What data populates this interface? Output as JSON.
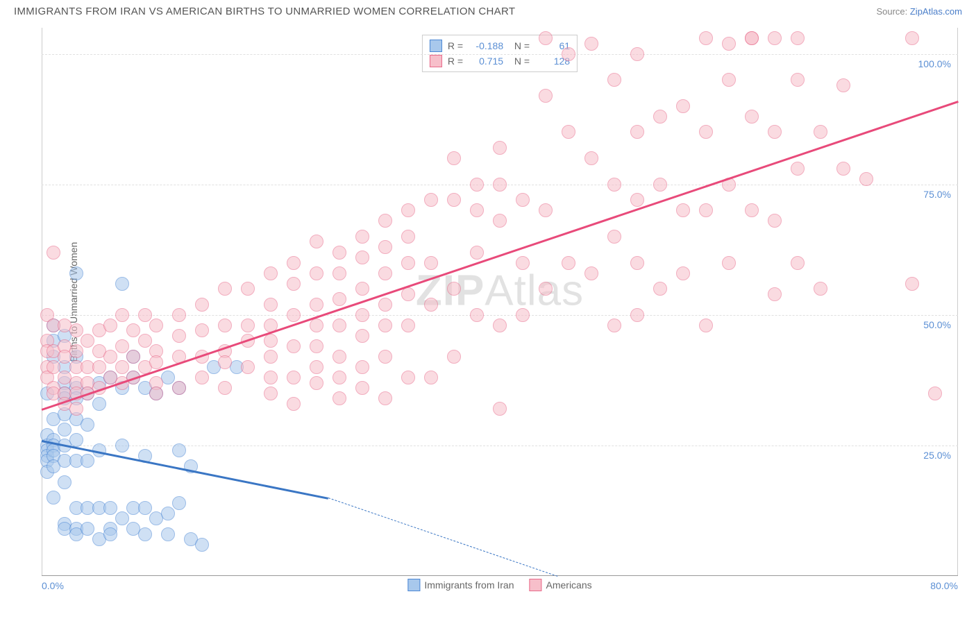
{
  "title": "IMMIGRANTS FROM IRAN VS AMERICAN BIRTHS TO UNMARRIED WOMEN CORRELATION CHART",
  "source_prefix": "Source: ",
  "source_link": "ZipAtlas.com",
  "ylabel": "Births to Unmarried Women",
  "watermark_bold": "ZIP",
  "watermark_rest": "Atlas",
  "chart": {
    "type": "scatter",
    "xlim": [
      0,
      80
    ],
    "ylim": [
      0,
      105
    ],
    "xtick_labels": [
      "0.0%",
      "80.0%"
    ],
    "xtick_positions": [
      0,
      80
    ],
    "ytick_labels": [
      "25.0%",
      "50.0%",
      "75.0%",
      "100.0%"
    ],
    "ytick_positions": [
      25,
      50,
      75,
      100
    ],
    "grid_color": "#e0e0e0",
    "background_color": "#ffffff",
    "marker_radius": 10,
    "marker_border_width": 1.5,
    "series": [
      {
        "name": "Immigrants from Iran",
        "fill": "#a8c8ec",
        "fill_opacity": 0.55,
        "stroke": "#4a86d4",
        "line_color": "#3a76c4",
        "r_value": "-0.188",
        "n_value": "61",
        "trend": {
          "x1": 0,
          "y1": 26,
          "x2_solid": 25,
          "y2_solid": 15,
          "x2": 45,
          "y2": 0
        },
        "points": [
          [
            0.5,
            35
          ],
          [
            0.5,
            27
          ],
          [
            0.5,
            25
          ],
          [
            0.5,
            24
          ],
          [
            0.5,
            23
          ],
          [
            0.5,
            22
          ],
          [
            0.5,
            20
          ],
          [
            1,
            48
          ],
          [
            1,
            45
          ],
          [
            1,
            42
          ],
          [
            1,
            30
          ],
          [
            1,
            26
          ],
          [
            1,
            25
          ],
          [
            1,
            24
          ],
          [
            1,
            23
          ],
          [
            1,
            21
          ],
          [
            1,
            15
          ],
          [
            2,
            46
          ],
          [
            2,
            40
          ],
          [
            2,
            37
          ],
          [
            2,
            35
          ],
          [
            2,
            34
          ],
          [
            2,
            31
          ],
          [
            2,
            28
          ],
          [
            2,
            25
          ],
          [
            2,
            22
          ],
          [
            2,
            18
          ],
          [
            2,
            10
          ],
          [
            2,
            9
          ],
          [
            3,
            58
          ],
          [
            3,
            42
          ],
          [
            3,
            36
          ],
          [
            3,
            34
          ],
          [
            3,
            30
          ],
          [
            3,
            26
          ],
          [
            3,
            22
          ],
          [
            3,
            13
          ],
          [
            3,
            9
          ],
          [
            3,
            8
          ],
          [
            4,
            35
          ],
          [
            4,
            29
          ],
          [
            4,
            22
          ],
          [
            4,
            13
          ],
          [
            4,
            9
          ],
          [
            5,
            37
          ],
          [
            5,
            33
          ],
          [
            5,
            24
          ],
          [
            5,
            13
          ],
          [
            5,
            7
          ],
          [
            6,
            38
          ],
          [
            6,
            13
          ],
          [
            6,
            9
          ],
          [
            6,
            8
          ],
          [
            7,
            56
          ],
          [
            7,
            36
          ],
          [
            7,
            25
          ],
          [
            7,
            11
          ],
          [
            8,
            42
          ],
          [
            8,
            38
          ],
          [
            8,
            13
          ],
          [
            8,
            9
          ],
          [
            9,
            36
          ],
          [
            9,
            23
          ],
          [
            9,
            13
          ],
          [
            9,
            8
          ],
          [
            10,
            35
          ],
          [
            10,
            11
          ],
          [
            11,
            38
          ],
          [
            11,
            12
          ],
          [
            11,
            8
          ],
          [
            12,
            36
          ],
          [
            12,
            24
          ],
          [
            12,
            14
          ],
          [
            13,
            21
          ],
          [
            13,
            7
          ],
          [
            15,
            40
          ],
          [
            14,
            6
          ],
          [
            17,
            40
          ]
        ]
      },
      {
        "name": "Americans",
        "fill": "#f7bfca",
        "fill_opacity": 0.55,
        "stroke": "#e86a8a",
        "line_color": "#e84a7a",
        "r_value": "0.715",
        "n_value": "128",
        "trend": {
          "x1": 0,
          "y1": 32,
          "x2_solid": 80,
          "y2_solid": 91,
          "x2": 80,
          "y2": 91
        },
        "points": [
          [
            0.5,
            50
          ],
          [
            0.5,
            45
          ],
          [
            0.5,
            43
          ],
          [
            0.5,
            40
          ],
          [
            0.5,
            38
          ],
          [
            1,
            62
          ],
          [
            1,
            48
          ],
          [
            1,
            43
          ],
          [
            1,
            40
          ],
          [
            1,
            36
          ],
          [
            1,
            35
          ],
          [
            2,
            48
          ],
          [
            2,
            44
          ],
          [
            2,
            42
          ],
          [
            2,
            38
          ],
          [
            2,
            35
          ],
          [
            2,
            33
          ],
          [
            3,
            47
          ],
          [
            3,
            43
          ],
          [
            3,
            40
          ],
          [
            3,
            37
          ],
          [
            3,
            35
          ],
          [
            3,
            32
          ],
          [
            4,
            45
          ],
          [
            4,
            40
          ],
          [
            4,
            37
          ],
          [
            4,
            35
          ],
          [
            5,
            47
          ],
          [
            5,
            43
          ],
          [
            5,
            40
          ],
          [
            5,
            36
          ],
          [
            6,
            48
          ],
          [
            6,
            42
          ],
          [
            6,
            38
          ],
          [
            7,
            50
          ],
          [
            7,
            44
          ],
          [
            7,
            40
          ],
          [
            7,
            37
          ],
          [
            8,
            47
          ],
          [
            8,
            42
          ],
          [
            8,
            38
          ],
          [
            9,
            50
          ],
          [
            9,
            45
          ],
          [
            9,
            40
          ],
          [
            10,
            48
          ],
          [
            10,
            43
          ],
          [
            10,
            41
          ],
          [
            10,
            37
          ],
          [
            10,
            35
          ],
          [
            12,
            50
          ],
          [
            12,
            46
          ],
          [
            12,
            42
          ],
          [
            12,
            36
          ],
          [
            14,
            52
          ],
          [
            14,
            47
          ],
          [
            14,
            42
          ],
          [
            14,
            38
          ],
          [
            16,
            55
          ],
          [
            16,
            48
          ],
          [
            16,
            43
          ],
          [
            16,
            41
          ],
          [
            16,
            36
          ],
          [
            18,
            55
          ],
          [
            18,
            48
          ],
          [
            18,
            45
          ],
          [
            18,
            40
          ],
          [
            20,
            58
          ],
          [
            20,
            52
          ],
          [
            20,
            48
          ],
          [
            20,
            45
          ],
          [
            20,
            42
          ],
          [
            20,
            38
          ],
          [
            20,
            35
          ],
          [
            22,
            60
          ],
          [
            22,
            56
          ],
          [
            22,
            50
          ],
          [
            22,
            44
          ],
          [
            22,
            38
          ],
          [
            22,
            33
          ],
          [
            24,
            64
          ],
          [
            24,
            58
          ],
          [
            24,
            52
          ],
          [
            24,
            48
          ],
          [
            24,
            44
          ],
          [
            24,
            40
          ],
          [
            24,
            37
          ],
          [
            26,
            62
          ],
          [
            26,
            58
          ],
          [
            26,
            53
          ],
          [
            26,
            48
          ],
          [
            26,
            42
          ],
          [
            26,
            38
          ],
          [
            26,
            34
          ],
          [
            28,
            65
          ],
          [
            28,
            61
          ],
          [
            28,
            55
          ],
          [
            28,
            50
          ],
          [
            28,
            46
          ],
          [
            28,
            40
          ],
          [
            28,
            36
          ],
          [
            30,
            68
          ],
          [
            30,
            63
          ],
          [
            30,
            58
          ],
          [
            30,
            52
          ],
          [
            30,
            48
          ],
          [
            30,
            42
          ],
          [
            30,
            34
          ],
          [
            32,
            70
          ],
          [
            32,
            65
          ],
          [
            32,
            60
          ],
          [
            32,
            54
          ],
          [
            32,
            48
          ],
          [
            32,
            38
          ],
          [
            34,
            72
          ],
          [
            34,
            60
          ],
          [
            34,
            52
          ],
          [
            34,
            38
          ],
          [
            36,
            80
          ],
          [
            36,
            72
          ],
          [
            36,
            55
          ],
          [
            36,
            42
          ],
          [
            38,
            75
          ],
          [
            38,
            70
          ],
          [
            38,
            62
          ],
          [
            38,
            50
          ],
          [
            40,
            82
          ],
          [
            40,
            75
          ],
          [
            40,
            68
          ],
          [
            40,
            48
          ],
          [
            40,
            32
          ],
          [
            42,
            72
          ],
          [
            42,
            60
          ],
          [
            42,
            50
          ],
          [
            44,
            103
          ],
          [
            44,
            92
          ],
          [
            44,
            70
          ],
          [
            44,
            55
          ],
          [
            46,
            100
          ],
          [
            46,
            85
          ],
          [
            46,
            60
          ],
          [
            48,
            102
          ],
          [
            48,
            80
          ],
          [
            48,
            58
          ],
          [
            50,
            95
          ],
          [
            50,
            75
          ],
          [
            50,
            65
          ],
          [
            50,
            48
          ],
          [
            52,
            100
          ],
          [
            52,
            85
          ],
          [
            52,
            72
          ],
          [
            52,
            60
          ],
          [
            52,
            50
          ],
          [
            54,
            88
          ],
          [
            54,
            75
          ],
          [
            54,
            55
          ],
          [
            56,
            90
          ],
          [
            56,
            70
          ],
          [
            56,
            58
          ],
          [
            58,
            103
          ],
          [
            58,
            85
          ],
          [
            58,
            70
          ],
          [
            58,
            48
          ],
          [
            60,
            102
          ],
          [
            60,
            95
          ],
          [
            60,
            75
          ],
          [
            60,
            60
          ],
          [
            62,
            103
          ],
          [
            62,
            103
          ],
          [
            62,
            88
          ],
          [
            62,
            70
          ],
          [
            64,
            103
          ],
          [
            64,
            85
          ],
          [
            64,
            68
          ],
          [
            64,
            54
          ],
          [
            66,
            103
          ],
          [
            66,
            95
          ],
          [
            66,
            78
          ],
          [
            66,
            60
          ],
          [
            68,
            85
          ],
          [
            68,
            55
          ],
          [
            70,
            94
          ],
          [
            70,
            78
          ],
          [
            72,
            76
          ],
          [
            76,
            103
          ],
          [
            76,
            56
          ],
          [
            78,
            35
          ]
        ]
      }
    ]
  },
  "legend_bottom": [
    {
      "label": "Immigrants from Iran",
      "fill": "#a8c8ec",
      "stroke": "#4a86d4"
    },
    {
      "label": "Americans",
      "fill": "#f7bfca",
      "stroke": "#e86a8a"
    }
  ]
}
